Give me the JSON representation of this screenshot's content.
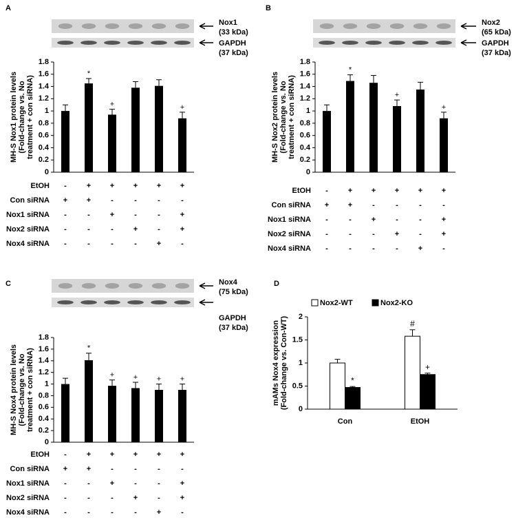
{
  "chart_data": [
    {
      "type": "bar",
      "panel": "A",
      "blot_labels": [
        "Nox1",
        "(33 kDa)",
        "GAPDH",
        "(37 kDa)"
      ],
      "ylabel": [
        "MH-S Nox1 protein levels",
        "(Fold-change vs. No",
        "treatment + con siRNA)"
      ],
      "values": [
        1.0,
        1.45,
        0.94,
        1.38,
        1.41,
        0.88
      ],
      "errors": [
        0.1,
        0.08,
        0.09,
        0.1,
        0.1,
        0.1
      ],
      "markers": [
        null,
        "*",
        "+",
        null,
        null,
        "+"
      ],
      "color": "#000000",
      "ylim": [
        0,
        1.8
      ],
      "yticks": [
        0,
        0.2,
        0.4,
        0.6,
        0.8,
        1,
        1.2,
        1.4,
        1.6,
        1.8
      ],
      "treatments": [
        {
          "label": "EtOH",
          "signs": [
            "-",
            "+",
            "+",
            "+",
            "+",
            "+"
          ]
        },
        {
          "label": "Con siRNA",
          "signs": [
            "+",
            "+",
            "-",
            "-",
            "-",
            "-"
          ]
        },
        {
          "label": "Nox1 siRNA",
          "signs": [
            "-",
            "-",
            "+",
            "-",
            "-",
            "+"
          ]
        },
        {
          "label": "Nox2 siRNA",
          "signs": [
            "-",
            "-",
            "-",
            "+",
            "-",
            "+"
          ]
        },
        {
          "label": "Nox4 siRNA",
          "signs": [
            "-",
            "-",
            "-",
            "-",
            "+",
            "-"
          ]
        }
      ]
    },
    {
      "type": "bar",
      "panel": "B",
      "blot_labels": [
        "Nox2",
        "(65 kDa)",
        "GAPDH",
        "(37 kDa)"
      ],
      "ylabel": [
        "MH-S Nox2 protein levels",
        "(Fold-change vs. No",
        "treatment + con siRNA)"
      ],
      "values": [
        1.0,
        1.49,
        1.46,
        1.08,
        1.35,
        0.88
      ],
      "errors": [
        0.1,
        0.1,
        0.12,
        0.1,
        0.12,
        0.1
      ],
      "markers": [
        null,
        "*",
        null,
        "+",
        null,
        "+"
      ],
      "color": "#000000",
      "ylim": [
        0,
        1.8
      ],
      "yticks": [
        0,
        0.2,
        0.4,
        0.6,
        0.8,
        1,
        1.2,
        1.4,
        1.6,
        1.8
      ],
      "treatments": [
        {
          "label": "EtOH",
          "signs": [
            "-",
            "+",
            "+",
            "+",
            "+",
            "+"
          ]
        },
        {
          "label": "Con siRNA",
          "signs": [
            "+",
            "+",
            "-",
            "-",
            "-",
            "-"
          ]
        },
        {
          "label": "Nox1 siRNA",
          "signs": [
            "-",
            "-",
            "+",
            "-",
            "-",
            "+"
          ]
        },
        {
          "label": "Nox2 siRNA",
          "signs": [
            "-",
            "-",
            "-",
            "+",
            "-",
            "+"
          ]
        },
        {
          "label": "Nox4 siRNA",
          "signs": [
            "-",
            "-",
            "-",
            "-",
            "+",
            "-"
          ]
        }
      ]
    },
    {
      "type": "bar",
      "panel": "C",
      "blot_labels": [
        "Nox4",
        "(75 kDa)",
        "GAPDH",
        "(37 kDa)"
      ],
      "ylabel": [
        "MH-S Nox4 protein levels",
        "(Fold-change vs. No",
        "treatment + con siRNA)"
      ],
      "values": [
        1.0,
        1.41,
        0.97,
        0.93,
        0.9,
        0.9
      ],
      "errors": [
        0.1,
        0.12,
        0.1,
        0.1,
        0.1,
        0.1
      ],
      "markers": [
        null,
        "*",
        "+",
        "+",
        "+",
        "+"
      ],
      "color": "#000000",
      "ylim": [
        0,
        1.8
      ],
      "yticks": [
        0,
        0.2,
        0.4,
        0.6,
        0.8,
        1,
        1.2,
        1.4,
        1.6,
        1.8
      ],
      "treatments": [
        {
          "label": "EtOH",
          "signs": [
            "-",
            "+",
            "+",
            "+",
            "+",
            "+"
          ]
        },
        {
          "label": "Con siRNA",
          "signs": [
            "+",
            "+",
            "-",
            "-",
            "-",
            "-"
          ]
        },
        {
          "label": "Nox1 siRNA",
          "signs": [
            "-",
            "-",
            "+",
            "-",
            "-",
            "+"
          ]
        },
        {
          "label": "Nox2 siRNA",
          "signs": [
            "-",
            "-",
            "-",
            "+",
            "-",
            "+"
          ]
        },
        {
          "label": "Nox4 siRNA",
          "signs": [
            "-",
            "-",
            "-",
            "-",
            "+",
            "-"
          ]
        }
      ]
    },
    {
      "type": "grouped_bar",
      "panel": "D",
      "ylabel": [
        "mAMs Nox4 expression",
        "(Fold-change vs. Con-WT)"
      ],
      "categories": [
        "Con",
        "EtOH"
      ],
      "series": [
        {
          "name": "Nox2-WT",
          "color": "#ffffff",
          "values": [
            1.0,
            1.58
          ],
          "errors": [
            0.08,
            0.14
          ],
          "markers": [
            null,
            "#"
          ]
        },
        {
          "name": "Nox2-KO",
          "color": "#000000",
          "values": [
            0.47,
            0.75
          ],
          "errors": [
            0.02,
            0.03
          ],
          "markers": [
            "*",
            "+"
          ]
        }
      ],
      "ylim": [
        0,
        2
      ],
      "yticks": [
        0,
        0.5,
        1,
        1.5,
        2
      ]
    }
  ]
}
